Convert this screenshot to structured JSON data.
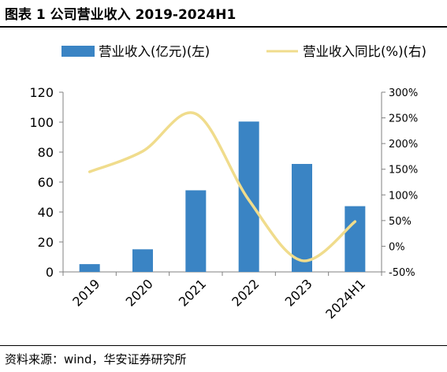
{
  "header": {
    "title": "图表 1 公司营业收入 2019-2024H1"
  },
  "footer": {
    "source": "资料来源：wind，华安证券研究所"
  },
  "colors": {
    "bar": "#3a84c4",
    "line": "#f0dc8c",
    "axis": "#808080",
    "text": "#000000"
  },
  "chart_data": {
    "type": "bar",
    "categories": [
      "2019",
      "2020",
      "2021",
      "2022",
      "2023",
      "2024H1"
    ],
    "series": [
      {
        "name": "营业收入(亿元)(左)",
        "type": "bar",
        "axis": "left",
        "values": [
          5.2,
          15.1,
          54.5,
          100.4,
          72.1,
          43.9
        ]
      },
      {
        "name": "营业收入同比(%)(右)",
        "type": "line",
        "axis": "right",
        "values": [
          145,
          185,
          258,
          90,
          -28,
          48
        ]
      }
    ],
    "y_left": {
      "ylim": [
        0,
        120
      ],
      "ticks": [
        "0",
        "20",
        "40",
        "60",
        "80",
        "100",
        "120"
      ]
    },
    "y_right": {
      "ylim": [
        -50,
        300
      ],
      "ticks": [
        "-50%",
        "0%",
        "50%",
        "100%",
        "150%",
        "200%",
        "250%",
        "300%"
      ]
    },
    "legend": "top",
    "grid": false
  }
}
